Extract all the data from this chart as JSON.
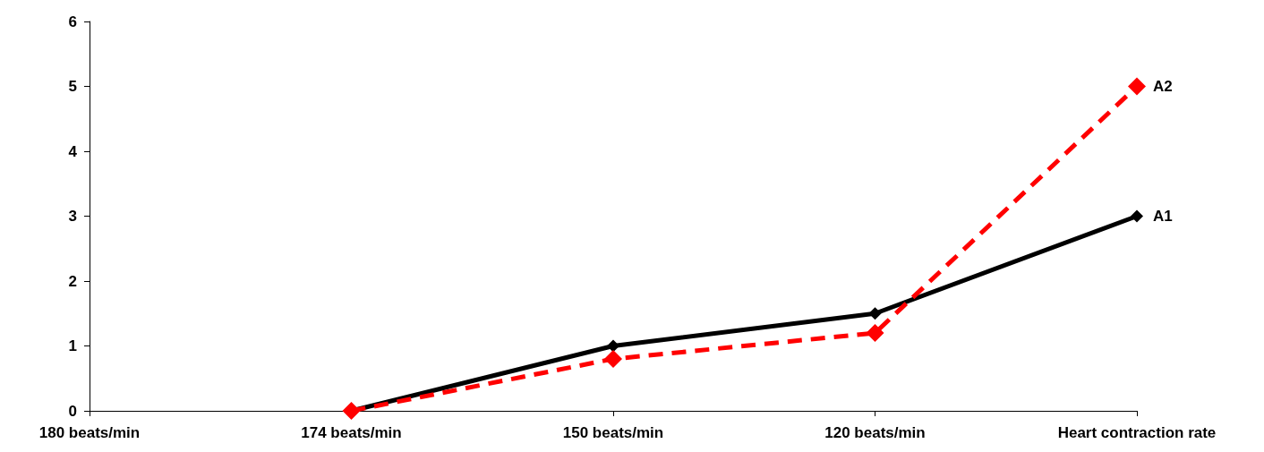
{
  "chart_data": {
    "type": "line",
    "categories": [
      "180 beats/min",
      "174 beats/min",
      "150 beats/min",
      "120 beats/min",
      "Heart contraction rate"
    ],
    "series": [
      {
        "name": "A1",
        "color": "#000000",
        "line_style": "solid",
        "values": [
          null,
          0,
          1,
          1.5,
          3
        ]
      },
      {
        "name": "A2",
        "color": "#ff0000",
        "line_style": "dashed",
        "values": [
          null,
          0,
          0.8,
          1.2,
          5
        ]
      }
    ],
    "ylim": [
      0,
      6
    ],
    "yticks": [
      0,
      1,
      2,
      3,
      4,
      5,
      6
    ],
    "grid": false,
    "legend": false,
    "marker": "diamond"
  }
}
